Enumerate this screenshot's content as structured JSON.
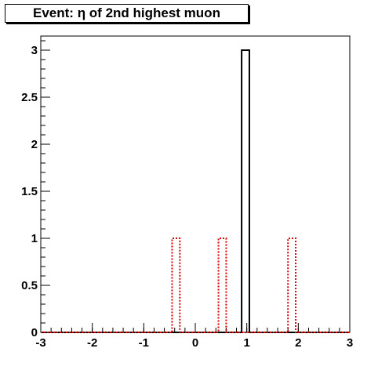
{
  "chart_data": {
    "type": "histogram",
    "title": "Event: η of 2nd highest muon",
    "xlabel": "",
    "ylabel": "",
    "xlim": [
      -3,
      3
    ],
    "ylim": [
      0,
      3.15
    ],
    "grid": false,
    "x_ticks": [
      "-3",
      "-2",
      "-1",
      "0",
      "1",
      "2",
      "3"
    ],
    "y_ticks": [
      "0",
      "0.5",
      "1",
      "1.5",
      "2",
      "2.5",
      "3"
    ],
    "series": [
      {
        "style": "solid",
        "color": "#000000",
        "bins": [
          {
            "x0": 0.9,
            "x1": 1.05,
            "value": 3
          }
        ]
      },
      {
        "style": "dotted",
        "color": "#e00000",
        "bins": [
          {
            "x0": -0.45,
            "x1": -0.3,
            "value": 1
          },
          {
            "x0": 0.45,
            "x1": 0.6,
            "value": 1
          },
          {
            "x0": 1.8,
            "x1": 1.95,
            "value": 1
          }
        ]
      }
    ]
  }
}
